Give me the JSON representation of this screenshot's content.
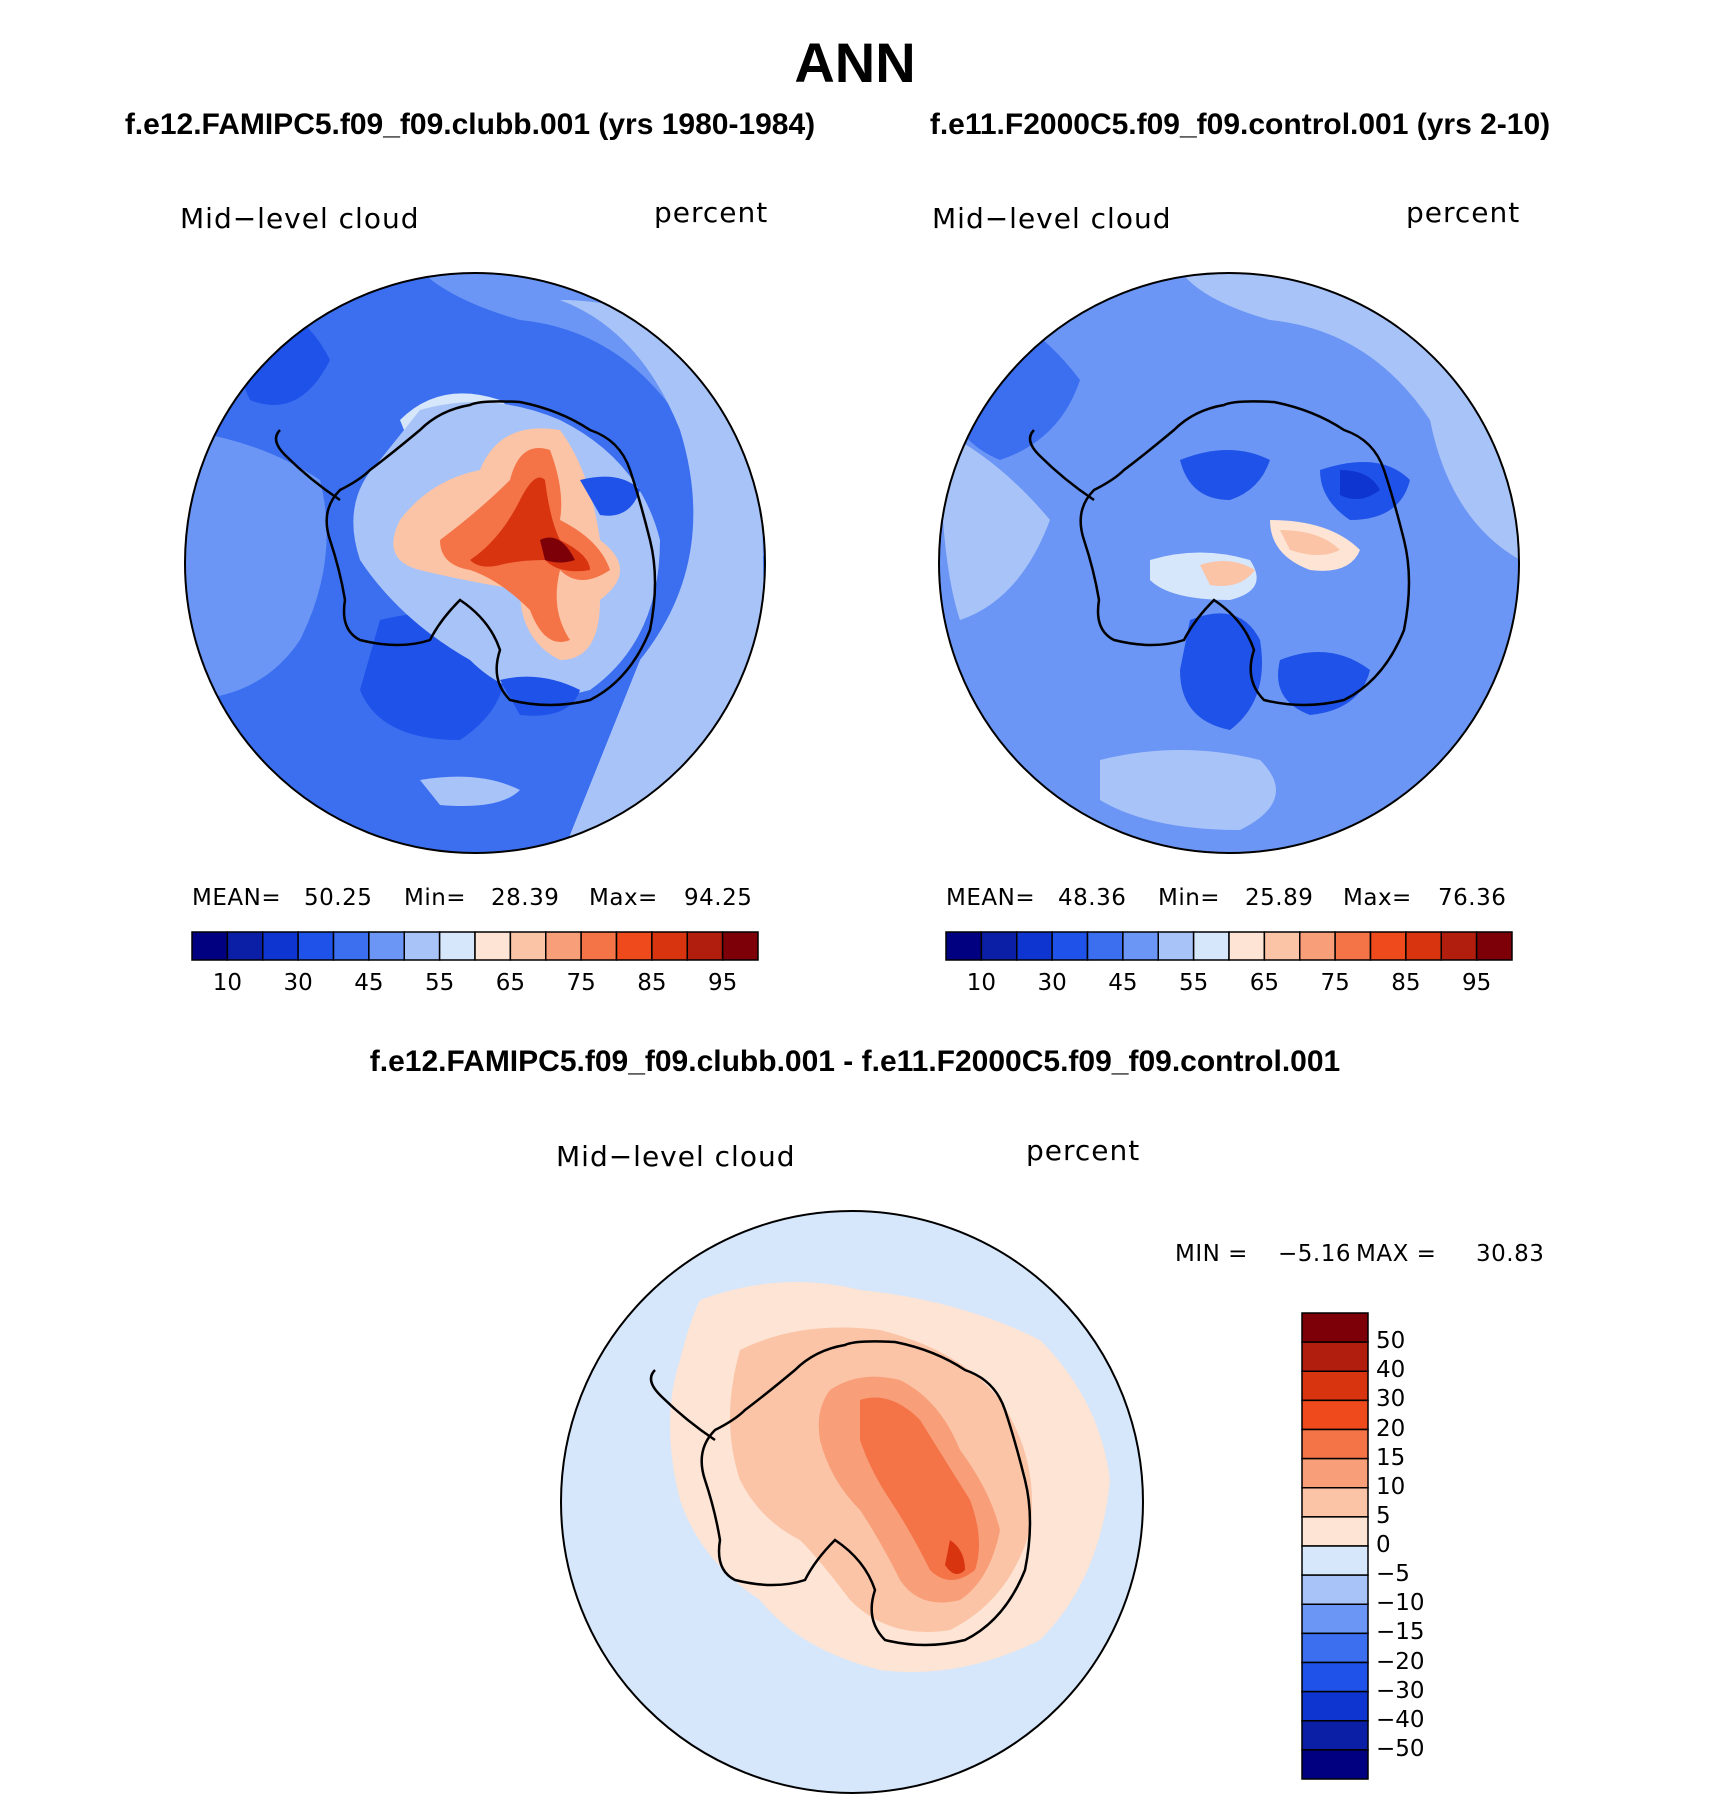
{
  "title": "ANN",
  "panels": [
    {
      "case_title": "f.e12.FAMIPC5.f09_f09.clubb.001 (yrs 1980-1984)",
      "variable": "Mid−level cloud",
      "units": "percent",
      "stats": {
        "mean_label": "MEAN=",
        "mean": "50.25",
        "min_label": "Min=",
        "min": "28.39",
        "max_label": "Max=",
        "max": "94.25"
      }
    },
    {
      "case_title": "f.e11.F2000C5.f09_f09.control.001 (yrs 2-10)",
      "variable": "Mid−level cloud",
      "units": "percent",
      "stats": {
        "mean_label": "MEAN=",
        "mean": "48.36",
        "min_label": "Min=",
        "min": "25.89",
        "max_label": "Max=",
        "max": "76.36"
      }
    },
    {
      "case_title": "f.e12.FAMIPC5.f09_f09.clubb.001 - f.e11.F2000C5.f09_f09.control.001",
      "variable": "Mid−level cloud",
      "units": "percent",
      "stats": {
        "min_label": "MIN =",
        "min": "−5.16",
        "max_label": "MAX =",
        "max": "30.83"
      }
    }
  ],
  "colorbar_abs": {
    "colors": [
      "#000080",
      "#0a1fa6",
      "#0f35d1",
      "#1f52e8",
      "#3b6ff0",
      "#6b96f5",
      "#a8c3f8",
      "#d6e6fb",
      "#fde4d4",
      "#fbc4a6",
      "#f89e78",
      "#f47448",
      "#ee4a1c",
      "#d83410",
      "#b21e0e",
      "#7d0008"
    ],
    "tick_labels": [
      "10",
      "30",
      "45",
      "55",
      "65",
      "75",
      "85",
      "95"
    ]
  },
  "colorbar_diff": {
    "colors": [
      "#000080",
      "#0a1fa6",
      "#0f35d1",
      "#1f52e8",
      "#3b6ff0",
      "#6b96f5",
      "#a8c3f8",
      "#d6e6fb",
      "#fde4d4",
      "#fbc4a6",
      "#f89e78",
      "#f47448",
      "#ee4a1c",
      "#d83410",
      "#b21e0e",
      "#7d0008"
    ],
    "tick_labels": [
      "50",
      "40",
      "30",
      "20",
      "15",
      "10",
      "5",
      "0",
      "−5",
      "−10",
      "−15",
      "−20",
      "−30",
      "−40",
      "−50"
    ]
  },
  "chart_data": [
    {
      "type": "heatmap",
      "title": "Mid−level cloud",
      "subtitle": "f.e12.FAMIPC5.f09_f09.clubb.001 (yrs 1980-1984)",
      "units": "percent",
      "projection": "south polar stereographic",
      "contour_levels": [
        5,
        10,
        20,
        30,
        40,
        45,
        50,
        55,
        60,
        65,
        70,
        75,
        80,
        85,
        90,
        95
      ],
      "mean": 50.25,
      "min": 28.39,
      "max": 94.25
    },
    {
      "type": "heatmap",
      "title": "Mid−level cloud",
      "subtitle": "f.e11.F2000C5.f09_f09.control.001 (yrs 2-10)",
      "units": "percent",
      "projection": "south polar stereographic",
      "contour_levels": [
        5,
        10,
        20,
        30,
        40,
        45,
        50,
        55,
        60,
        65,
        70,
        75,
        80,
        85,
        90,
        95
      ],
      "mean": 48.36,
      "min": 25.89,
      "max": 76.36
    },
    {
      "type": "heatmap",
      "title": "Mid−level cloud",
      "subtitle": "f.e12.FAMIPC5.f09_f09.clubb.001 - f.e11.F2000C5.f09_f09.control.001",
      "units": "percent",
      "projection": "south polar stereographic",
      "contour_levels": [
        -50,
        -40,
        -30,
        -20,
        -15,
        -10,
        -5,
        0,
        5,
        10,
        15,
        20,
        30,
        40,
        50
      ],
      "min": -5.16,
      "max": 30.83
    }
  ]
}
